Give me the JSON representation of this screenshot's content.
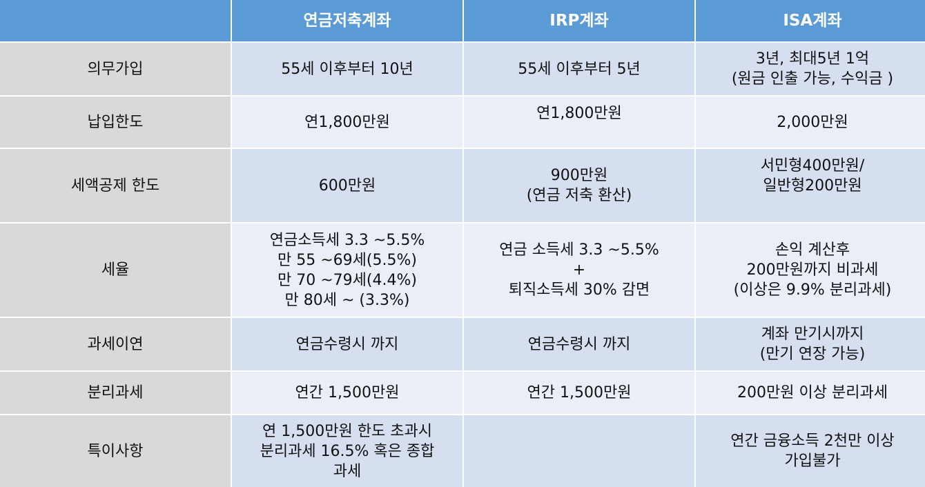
{
  "table": {
    "headers": [
      "",
      "연금저축계좌",
      "IRP계좌",
      "ISA계좌"
    ],
    "rows": [
      {
        "label": "의무가입",
        "pension": "55세 이후부터 10년",
        "irp": "55세 이후부터 5년",
        "isa": "3년, 최대5년 1억\n(원금 인출 가능, 수익금 )"
      },
      {
        "label": "납입한도",
        "pension": "연1,800만원",
        "irp": "연1,800만원",
        "isa": "2,000만원"
      },
      {
        "label": "세액공제 한도",
        "pension": "600만원",
        "irp": "900만원\n(연금 저축 환산)",
        "isa": "서민형400만원/\n일반형200만원"
      },
      {
        "label": "세율",
        "pension": "연금소득세 3.3 ~5.5%\n만 55 ~69세(5.5%)\n만 70 ~79세(4.4%)\n만 80세 ~ (3.3%)",
        "irp": "연금 소득세 3.3 ~5.5%\n+\n퇴직소득세 30% 감면",
        "isa": "손익 계산후\n200만원까지 비과세\n(이상은 9.9% 분리과세)"
      },
      {
        "label": "과세이연",
        "pension": "연금수령시 까지",
        "irp": "연금수령시 까지",
        "isa": "계좌 만기시까지\n(만기 연장 가능)"
      },
      {
        "label": "분리과세",
        "pension": "연간 1,500만원",
        "irp": "연간 1,500만원",
        "isa": "200만원 이상 분리과세"
      },
      {
        "label": "특이사항",
        "pension": "연 1,500만원 한도 초과시\n분리과세 16.5% 혹은 종합\n과세",
        "irp": "",
        "isa": "연간 금융소득 2천만 이상\n가입불가"
      }
    ]
  }
}
